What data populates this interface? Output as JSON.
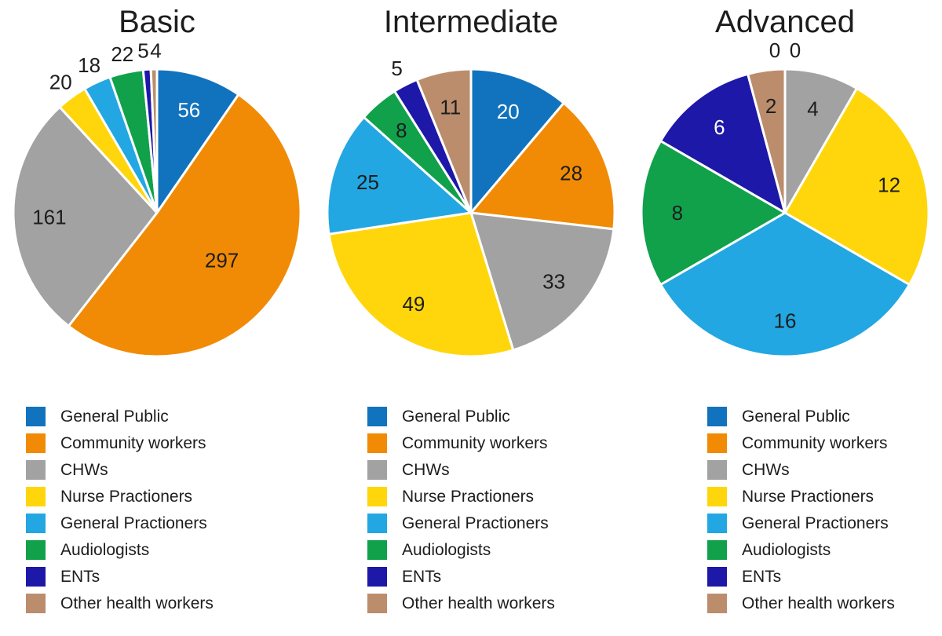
{
  "page": {
    "background": "#ffffff",
    "text_color": "#1d1d1d"
  },
  "chart_data": {
    "type": "pie",
    "categories": [
      "General Public",
      "Community workers",
      "CHWs",
      "Nurse Practioners",
      "General Practioners",
      "Audiologists",
      "ENTs",
      "Other health workers"
    ],
    "colors": [
      "#1173BD",
      "#F18B05",
      "#A2A2A2",
      "#FFD60B",
      "#22A7E2",
      "#11A14B",
      "#1D18A8",
      "#BB8D6D"
    ],
    "charts": [
      {
        "title": "Basic",
        "values": [
          56,
          297,
          161,
          20,
          18,
          22,
          5,
          4
        ]
      },
      {
        "title": "Intermediate",
        "values": [
          20,
          28,
          33,
          49,
          25,
          8,
          5,
          11
        ]
      },
      {
        "title": "Advanced",
        "values": [
          0,
          0,
          4,
          12,
          16,
          8,
          6,
          2
        ]
      }
    ],
    "layout": {
      "start_angle": "top",
      "direction": "clockwise",
      "legend_position": "bottom",
      "slice_border_color": "#ffffff",
      "label_color_dark": "#1d1d1d",
      "label_color_light": "#ffffff",
      "white_text_slice_indices": [
        0,
        6
      ]
    }
  }
}
